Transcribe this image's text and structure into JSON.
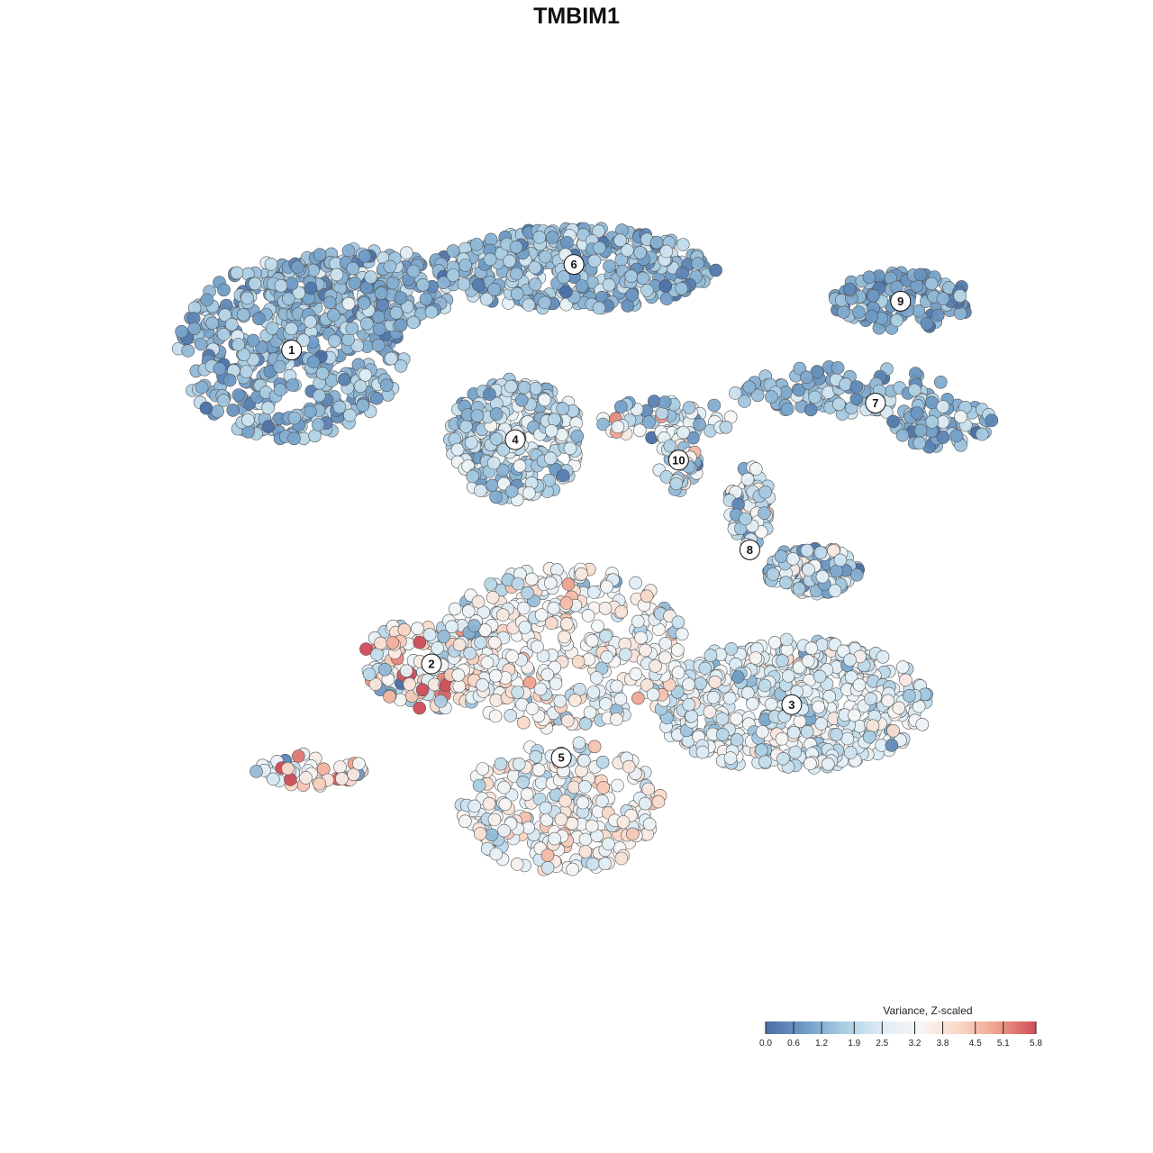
{
  "chart_data": {
    "type": "scatter",
    "title": "TMBIM1",
    "xlabel": "",
    "ylabel": "",
    "xlim": [
      0,
      100
    ],
    "ylim": [
      0,
      100
    ],
    "grid": false,
    "legend": {
      "title": "Variance, Z-scaled",
      "placement": "bottom-right",
      "type": "colorbar",
      "min": 0.0,
      "max": 5.8,
      "ticks": [
        "0.0",
        "0.6",
        "1.2",
        "1.9",
        "2.5",
        "3.2",
        "3.8",
        "4.5",
        "5.1",
        "5.8"
      ],
      "palette": [
        "#4a6fa5",
        "#6f9cc6",
        "#a9cde3",
        "#dfedf5",
        "#f7f7f7",
        "#f9d8c7",
        "#ef9f8a",
        "#cf4c57"
      ]
    },
    "clusters": [
      {
        "label": "1",
        "x": 13.3,
        "y": 77.5,
        "mean": 1.3,
        "sd": 0.55,
        "n": 650,
        "shape": [
          [
            13.3,
            77.5,
            13.5,
            11.0,
            0.85
          ],
          [
            22.0,
            85.0,
            11.0,
            5.0,
            0.4
          ]
        ]
      },
      {
        "label": "6",
        "x": 47.0,
        "y": 88.0,
        "mean": 1.4,
        "sd": 0.6,
        "n": 420,
        "shape": [
          [
            47.0,
            87.5,
            17.0,
            5.0,
            1.0
          ]
        ]
      },
      {
        "label": "9",
        "x": 86.0,
        "y": 83.5,
        "mean": 1.0,
        "sd": 0.5,
        "n": 120,
        "shape": [
          [
            86.0,
            83.5,
            8.5,
            3.5,
            1.0
          ]
        ]
      },
      {
        "label": "7",
        "x": 83.0,
        "y": 71.0,
        "mean": 1.3,
        "sd": 0.6,
        "n": 170,
        "shape": [
          [
            79.0,
            72.5,
            13.0,
            3.0,
            0.6
          ],
          [
            91.0,
            68.5,
            6.0,
            3.0,
            0.4
          ]
        ]
      },
      {
        "label": "4",
        "x": 40.0,
        "y": 66.5,
        "mean": 1.9,
        "sd": 0.7,
        "n": 280,
        "shape": [
          [
            40.0,
            66.5,
            8.0,
            7.5,
            1.0
          ]
        ]
      },
      {
        "label": "10",
        "x": 59.5,
        "y": 64.0,
        "mean": 2.3,
        "sd": 1.0,
        "n": 110,
        "shape": [
          [
            58.0,
            69.0,
            8.0,
            2.5,
            0.6
          ],
          [
            59.5,
            64.0,
            2.5,
            4.0,
            0.4
          ]
        ]
      },
      {
        "label": "8",
        "x": 68.0,
        "y": 53.0,
        "mean": 2.2,
        "sd": 1.0,
        "n": 200,
        "shape": [
          [
            68.0,
            58.5,
            2.5,
            5.0,
            0.4
          ],
          [
            75.5,
            50.5,
            5.5,
            3.0,
            0.6
          ]
        ]
      },
      {
        "label": "2",
        "x": 30.0,
        "y": 39.0,
        "mean": 3.4,
        "sd": 1.2,
        "n": 230,
        "shape": [
          [
            30.0,
            39.0,
            8.5,
            5.5,
            1.0
          ],
          [
            15.5,
            26.0,
            6.5,
            2.0,
            0.25
          ]
        ]
      },
      {
        "label": "3",
        "x": 73.0,
        "y": 34.0,
        "mean": 2.6,
        "sd": 0.6,
        "n": 560,
        "shape": [
          [
            73.0,
            34.0,
            16.5,
            8.0,
            1.0
          ]
        ]
      },
      {
        "label": "5",
        "x": 45.5,
        "y": 27.5,
        "mean": 3.1,
        "sd": 0.7,
        "n": 640,
        "shape": [
          [
            45.5,
            41.0,
            15.0,
            10.0,
            0.6
          ],
          [
            45.5,
            21.5,
            12.0,
            8.0,
            0.4
          ]
        ]
      }
    ]
  }
}
